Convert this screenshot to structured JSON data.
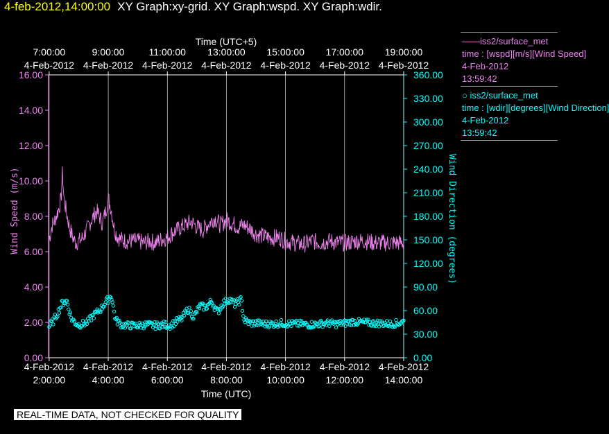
{
  "header": {
    "date_time": "4-feb-2012,14:00:00",
    "graphs": "XY Graph:xy-grid.  XY Graph:wspd.  XY Graph:wdir."
  },
  "legend": {
    "series1": {
      "name": "iss2/surface_met",
      "prefix": "——",
      "desc": "time : [wspd][m/s][Wind Speed]",
      "date": "4-Feb-2012",
      "time": "13:59:42"
    },
    "series2": {
      "name": "iss2/surface_met",
      "prefix": "○ ",
      "desc": "time : [wdir][degrees][Wind Direction]",
      "date": "4-Feb-2012",
      "time": "13:59:42"
    }
  },
  "notice": "REAL-TIME DATA, NOT CHECKED FOR QUALITY",
  "colors": {
    "wspd": "#ee82ee",
    "wdir": "#00ffff",
    "grid": "#ffffff",
    "title": "#ffff00"
  },
  "chart_data": {
    "type": "line",
    "top_axis": {
      "label": "Time (UTC+5)",
      "ticks": [
        {
          "t": 2,
          "time": "7:00:00",
          "date": "4-Feb-2012"
        },
        {
          "t": 4,
          "time": "9:00:00",
          "date": "4-Feb-2012"
        },
        {
          "t": 6,
          "time": "11:00:00",
          "date": "4-Feb-2012"
        },
        {
          "t": 8,
          "time": "13:00:00",
          "date": "4-Feb-2012"
        },
        {
          "t": 10,
          "time": "15:00:00",
          "date": "4-Feb-2012"
        },
        {
          "t": 12,
          "time": "17:00:00",
          "date": "4-Feb-2012"
        },
        {
          "t": 14,
          "time": "19:00:00",
          "date": "4-Feb-2012"
        }
      ]
    },
    "bottom_axis": {
      "label": "Time (UTC)",
      "ticks": [
        {
          "t": 2,
          "date": "4-Feb-2012",
          "time": "2:00:00"
        },
        {
          "t": 4,
          "date": "4-Feb-2012",
          "time": "4:00:00"
        },
        {
          "t": 6,
          "date": "4-Feb-2012",
          "time": "6:00:00"
        },
        {
          "t": 8,
          "date": "4-Feb-2012",
          "time": "8:00:00"
        },
        {
          "t": 10,
          "date": "4-Feb-2012",
          "time": "10:00:00"
        },
        {
          "t": 12,
          "date": "4-Feb-2012",
          "time": "12:00:00"
        },
        {
          "t": 14,
          "date": "4-Feb-2012",
          "time": "14:00:00"
        }
      ]
    },
    "xlim": [
      1.98,
      14.0
    ],
    "left_axis": {
      "label": "Wind Speed (m/s)",
      "ylim": [
        0,
        16
      ],
      "ticks": [
        "0.00",
        "2.00",
        "4.00",
        "6.00",
        "8.00",
        "10.00",
        "12.00",
        "14.00",
        "16.00"
      ]
    },
    "right_axis": {
      "label": "Wind Direction (degrees)",
      "ylim": [
        0,
        360
      ],
      "ticks": [
        "0.00",
        "30.00",
        "60.00",
        "90.00",
        "120.00",
        "150.00",
        "180.00",
        "210.00",
        "240.00",
        "270.00",
        "300.00",
        "330.00",
        "360.00"
      ]
    },
    "grid": "vertical lines at major time ticks",
    "series": [
      {
        "name": "iss2/surface_met wspd",
        "axis": "left",
        "style": "line",
        "x": [
          2.0,
          2.1,
          2.2,
          2.3,
          2.4,
          2.45,
          2.5,
          2.6,
          2.7,
          2.8,
          2.9,
          3.0,
          3.1,
          3.2,
          3.3,
          3.4,
          3.5,
          3.6,
          3.7,
          3.8,
          3.9,
          4.0,
          4.1,
          4.2,
          4.3,
          4.4,
          4.6,
          4.8,
          5.0,
          5.2,
          5.4,
          5.6,
          5.8,
          6.0,
          6.2,
          6.4,
          6.6,
          6.8,
          7.0,
          7.2,
          7.4,
          7.6,
          7.8,
          8.0,
          8.2,
          8.4,
          8.6,
          8.8,
          9.0,
          9.2,
          9.4,
          9.6,
          9.8,
          10.0,
          10.3,
          10.6,
          10.9,
          11.2,
          11.5,
          11.8,
          12.1,
          12.4,
          12.7,
          13.0,
          13.3,
          13.6,
          13.9,
          14.0
        ],
        "y": [
          6.7,
          7.5,
          7.8,
          8.3,
          8.9,
          10.5,
          9.0,
          8.1,
          7.3,
          6.8,
          6.5,
          6.6,
          6.7,
          7.0,
          7.3,
          7.7,
          8.0,
          8.3,
          8.0,
          7.6,
          8.2,
          9.0,
          8.4,
          7.3,
          6.9,
          6.7,
          6.6,
          6.6,
          6.6,
          6.5,
          6.6,
          6.5,
          6.7,
          6.8,
          7.1,
          7.3,
          7.5,
          7.7,
          7.4,
          7.2,
          7.6,
          7.9,
          7.5,
          7.8,
          7.6,
          7.4,
          7.5,
          7.3,
          7.0,
          6.9,
          6.8,
          6.8,
          6.8,
          6.6,
          6.5,
          6.4,
          6.6,
          6.5,
          6.6,
          6.5,
          6.5,
          6.6,
          6.6,
          6.5,
          6.5,
          6.5,
          6.5,
          6.5
        ]
      },
      {
        "name": "iss2/surface_met wdir",
        "axis": "right",
        "style": "circles",
        "x": [
          2.0,
          2.15,
          2.3,
          2.45,
          2.6,
          2.75,
          2.9,
          3.0,
          3.15,
          3.3,
          3.45,
          3.6,
          3.75,
          3.9,
          4.0,
          4.1,
          4.25,
          4.45,
          4.7,
          5.0,
          5.3,
          5.6,
          5.9,
          6.1,
          6.3,
          6.5,
          6.7,
          6.9,
          7.1,
          7.3,
          7.5,
          7.7,
          7.9,
          8.1,
          8.3,
          8.5,
          8.6,
          8.8,
          9.0,
          9.3,
          9.6,
          9.9,
          10.2,
          10.5,
          10.8,
          11.1,
          11.4,
          11.7,
          12.0,
          12.3,
          12.6,
          12.9,
          13.2,
          13.5,
          13.8,
          14.0
        ],
        "y": [
          40,
          47,
          58,
          70,
          72,
          50,
          44,
          42,
          43,
          45,
          52,
          57,
          62,
          70,
          74,
          80,
          48,
          42,
          41,
          41,
          42,
          41,
          42,
          41,
          46,
          50,
          62,
          52,
          66,
          64,
          72,
          58,
          70,
          74,
          68,
          74,
          48,
          44,
          44,
          43,
          43,
          44,
          43,
          43,
          42,
          43,
          44,
          43,
          44,
          46,
          45,
          44,
          44,
          43,
          44,
          46
        ]
      }
    ]
  }
}
